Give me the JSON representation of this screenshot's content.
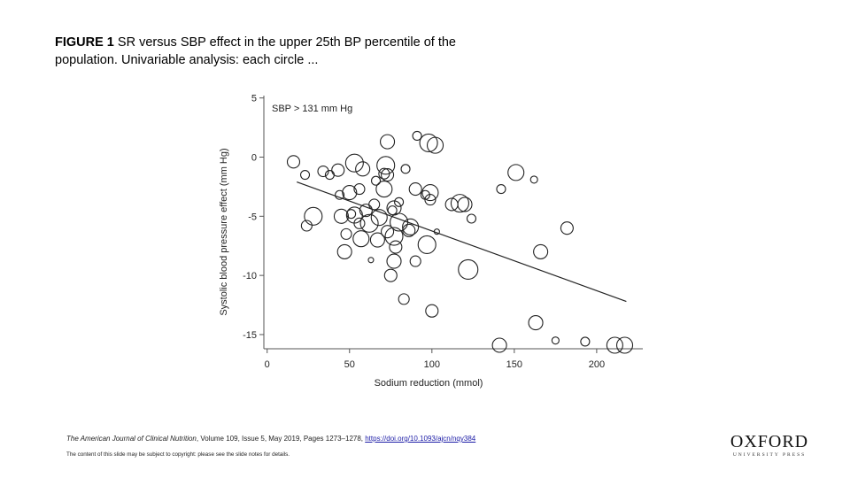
{
  "figure": {
    "label": "FIGURE 1",
    "caption": "SR versus SBP effect in the upper 25th BP percentile of the population. Univariable analysis: each circle ..."
  },
  "chart_data": {
    "type": "scatter",
    "title": "SBP > 131 mm Hg",
    "xlabel": "Sodium reduction (mmol)",
    "ylabel": "Systolic blood pressure effect (mm Hg)",
    "xlim": [
      -2,
      228
    ],
    "ylim": [
      -16.2,
      5.2
    ],
    "xticks": [
      0,
      50,
      100,
      150,
      200
    ],
    "yticks": [
      5,
      0,
      -5,
      -10,
      -15
    ],
    "grid": false,
    "points": [
      {
        "x": 16,
        "y": -0.4,
        "s": 7
      },
      {
        "x": 23,
        "y": -1.5,
        "s": 5
      },
      {
        "x": 24,
        "y": -5.8,
        "s": 6
      },
      {
        "x": 28,
        "y": -5.0,
        "s": 10
      },
      {
        "x": 34,
        "y": -1.2,
        "s": 6
      },
      {
        "x": 38,
        "y": -1.5,
        "s": 5
      },
      {
        "x": 43,
        "y": -1.1,
        "s": 7
      },
      {
        "x": 44,
        "y": -3.2,
        "s": 5
      },
      {
        "x": 45,
        "y": -5.0,
        "s": 8
      },
      {
        "x": 47,
        "y": -8.0,
        "s": 8
      },
      {
        "x": 48,
        "y": -6.5,
        "s": 6
      },
      {
        "x": 50,
        "y": -3.0,
        "s": 8
      },
      {
        "x": 51,
        "y": -4.8,
        "s": 5
      },
      {
        "x": 53,
        "y": -4.9,
        "s": 9
      },
      {
        "x": 53,
        "y": -0.5,
        "s": 10
      },
      {
        "x": 56,
        "y": -2.7,
        "s": 6
      },
      {
        "x": 56,
        "y": -5.6,
        "s": 6
      },
      {
        "x": 57,
        "y": -6.9,
        "s": 9
      },
      {
        "x": 58,
        "y": -1.0,
        "s": 8
      },
      {
        "x": 60,
        "y": -4.5,
        "s": 7
      },
      {
        "x": 62,
        "y": -5.6,
        "s": 10
      },
      {
        "x": 63,
        "y": -8.7,
        "s": 3
      },
      {
        "x": 65,
        "y": -4.0,
        "s": 6
      },
      {
        "x": 66,
        "y": -2.0,
        "s": 5
      },
      {
        "x": 67,
        "y": -7.0,
        "s": 8
      },
      {
        "x": 68,
        "y": -5.1,
        "s": 9
      },
      {
        "x": 71,
        "y": -1.4,
        "s": 6
      },
      {
        "x": 71,
        "y": -2.7,
        "s": 9
      },
      {
        "x": 72,
        "y": -0.7,
        "s": 10
      },
      {
        "x": 73,
        "y": -6.3,
        "s": 7
      },
      {
        "x": 73,
        "y": -1.5,
        "s": 7
      },
      {
        "x": 73,
        "y": 1.3,
        "s": 8
      },
      {
        "x": 75,
        "y": -10.0,
        "s": 7
      },
      {
        "x": 76,
        "y": -4.5,
        "s": 5
      },
      {
        "x": 77,
        "y": -6.7,
        "s": 10
      },
      {
        "x": 77,
        "y": -4.3,
        "s": 8
      },
      {
        "x": 77,
        "y": -8.8,
        "s": 8
      },
      {
        "x": 78,
        "y": -7.6,
        "s": 7
      },
      {
        "x": 80,
        "y": -5.5,
        "s": 10
      },
      {
        "x": 80,
        "y": -3.8,
        "s": 5
      },
      {
        "x": 83,
        "y": -12.0,
        "s": 6
      },
      {
        "x": 84,
        "y": -1.0,
        "s": 5
      },
      {
        "x": 86,
        "y": -6.2,
        "s": 7
      },
      {
        "x": 87,
        "y": -5.9,
        "s": 9
      },
      {
        "x": 90,
        "y": -8.8,
        "s": 6
      },
      {
        "x": 90,
        "y": -2.7,
        "s": 7
      },
      {
        "x": 91,
        "y": 1.8,
        "s": 5
      },
      {
        "x": 96,
        "y": -3.2,
        "s": 5
      },
      {
        "x": 97,
        "y": -7.4,
        "s": 10
      },
      {
        "x": 98,
        "y": 1.2,
        "s": 10
      },
      {
        "x": 99,
        "y": -3.0,
        "s": 9
      },
      {
        "x": 99,
        "y": -3.6,
        "s": 6
      },
      {
        "x": 100,
        "y": -13.0,
        "s": 7
      },
      {
        "x": 102,
        "y": 1.0,
        "s": 9
      },
      {
        "x": 103,
        "y": -6.3,
        "s": 3
      },
      {
        "x": 112,
        "y": -4.0,
        "s": 7
      },
      {
        "x": 117,
        "y": -3.9,
        "s": 10
      },
      {
        "x": 120,
        "y": -4.0,
        "s": 8
      },
      {
        "x": 122,
        "y": -9.5,
        "s": 11
      },
      {
        "x": 124,
        "y": -5.2,
        "s": 5
      },
      {
        "x": 141,
        "y": -15.9,
        "s": 8
      },
      {
        "x": 142,
        "y": -2.7,
        "s": 5
      },
      {
        "x": 151,
        "y": -1.3,
        "s": 9
      },
      {
        "x": 162,
        "y": -1.9,
        "s": 4
      },
      {
        "x": 163,
        "y": -14.0,
        "s": 8
      },
      {
        "x": 166,
        "y": -8.0,
        "s": 8
      },
      {
        "x": 175,
        "y": -15.5,
        "s": 4
      },
      {
        "x": 182,
        "y": -6.0,
        "s": 7
      },
      {
        "x": 193,
        "y": -15.6,
        "s": 5
      },
      {
        "x": 211,
        "y": -15.9,
        "s": 9
      },
      {
        "x": 217,
        "y": -15.9,
        "s": 9
      }
    ],
    "fit_line": {
      "x": [
        18,
        218
      ],
      "y": [
        -2.1,
        -12.2
      ]
    }
  },
  "footer": {
    "journal": "The American Journal of Clinical Nutrition",
    "citation": ", Volume 109, Issue 5, May 2019, Pages 1273–1278, ",
    "doi": "https://doi.org/10.1093/ajcn/nqy384",
    "copyright": "The content of this slide may be subject to copyright: please see the slide notes for details."
  },
  "logo": {
    "main": "OXFORD",
    "sub": "UNIVERSITY PRESS"
  }
}
